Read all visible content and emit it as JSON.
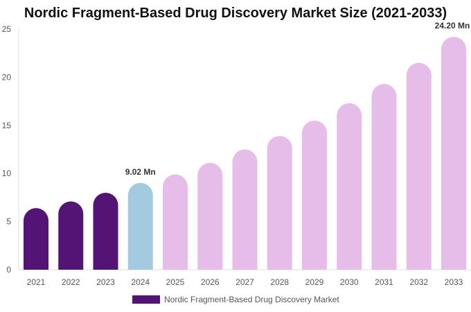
{
  "chart_data": {
    "type": "bar",
    "title": "Nordic Fragment-Based Drug Discovery Market Size (2021-2033)",
    "categories": [
      "2021",
      "2022",
      "2023",
      "2024",
      "2025",
      "2026",
      "2027",
      "2028",
      "2029",
      "2030",
      "2031",
      "2032",
      "2033"
    ],
    "series": [
      {
        "name": "Nordic Fragment-Based Drug Discovery Market",
        "values": [
          6.4,
          7.1,
          8.0,
          9.02,
          9.9,
          11.1,
          12.5,
          13.9,
          15.5,
          17.3,
          19.3,
          21.5,
          24.2
        ]
      }
    ],
    "data_labels": {
      "3": "9.02 Mn",
      "12": "24.20 Mn"
    },
    "ylim": [
      0,
      25
    ],
    "yticks": [
      0,
      5,
      10,
      15,
      20,
      25
    ],
    "grid": false,
    "legend_position": "bottom",
    "colors": {
      "historical": "#541475",
      "current": "#a3cade",
      "forecast": "#e6bde9"
    }
  }
}
